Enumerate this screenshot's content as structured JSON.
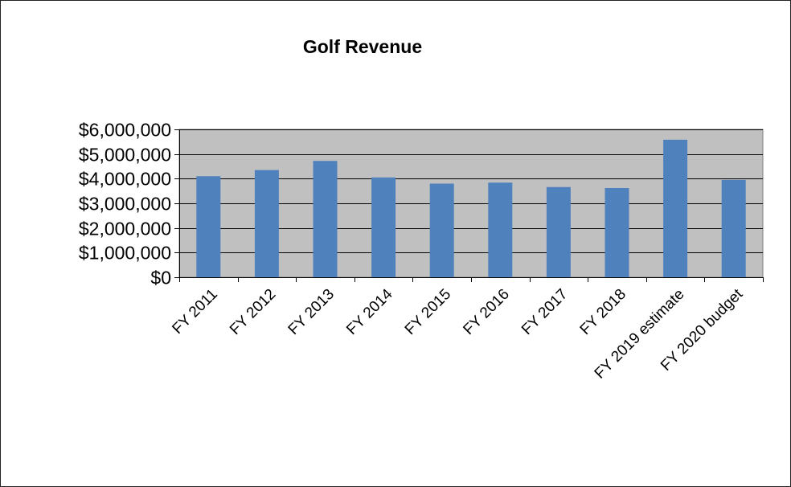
{
  "chart_data": {
    "type": "bar",
    "title": "Golf Revenue",
    "xlabel": "",
    "ylabel": "",
    "categories": [
      "FY 2011",
      "FY 2012",
      "FY 2013",
      "FY 2014",
      "FY 2015",
      "FY 2016",
      "FY 2017",
      "FY 2018",
      "FY 2019 estimate",
      "FY 2020 budget"
    ],
    "values": [
      4100000,
      4350000,
      4720000,
      4050000,
      3800000,
      3840000,
      3660000,
      3620000,
      5580000,
      3950000
    ],
    "ylim": [
      0,
      6000000
    ],
    "yticks": [
      0,
      1000000,
      2000000,
      3000000,
      4000000,
      5000000,
      6000000
    ],
    "ytick_labels": [
      "$0",
      "$1,000,000",
      "$2,000,000",
      "$3,000,000",
      "$4,000,000",
      "$5,000,000",
      "$6,000,000"
    ],
    "grid": true,
    "legend": "none",
    "colors": {
      "bar": "#4f81bd",
      "plot_background": "#c0c0c0",
      "gridline": "#000000"
    }
  }
}
